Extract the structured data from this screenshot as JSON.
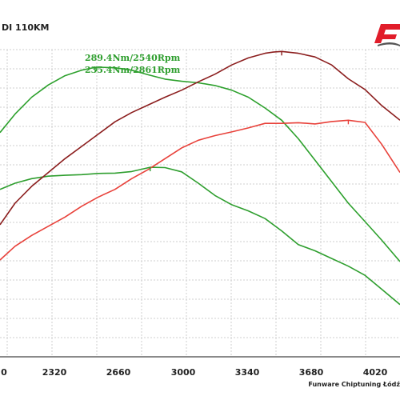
{
  "header": {
    "title_fragment": "DI 110KM"
  },
  "logo": {
    "name": "funware-logo-icon",
    "text": "F"
  },
  "credit": "Funware Chiptuning Łódź",
  "colors": {
    "stock_power": "#e8413a",
    "tuned_power": "#8b1d1d",
    "stock_torque": "#2e9e2e",
    "tuned_torque": "#2ca02c",
    "grid": "#cfcfcf"
  },
  "chart_data": {
    "type": "line",
    "title": "",
    "xlabel": "",
    "ylabel": "",
    "xlim": [
      1960,
      4360
    ],
    "ylim": [
      0,
      100
    ],
    "x_ticks": [
      "0",
      "2320",
      "2660",
      "3000",
      "3340",
      "3680",
      "4020"
    ],
    "grid": true,
    "annotations": [
      {
        "text": "289.4Nm/2540Rpm",
        "x": 2540
      },
      {
        "text": "235.4Nm/2861Rpm",
        "x": 2861
      }
    ],
    "series": [
      {
        "key": "tuned_torque",
        "x": [
          1960,
          2050,
          2150,
          2250,
          2350,
          2450,
          2540,
          2650,
          2750,
          2850,
          2950,
          3050,
          3150,
          3250,
          3350,
          3450,
          3550,
          3650,
          3750,
          3850,
          3950,
          4050,
          4150,
          4250,
          4360
        ],
        "y": [
          73,
          79,
          84.5,
          88.5,
          91.5,
          93.3,
          94.3,
          94.1,
          93.3,
          91.8,
          90.4,
          89.7,
          89.2,
          88.3,
          86.8,
          84.5,
          81,
          77,
          71,
          64,
          57,
          50,
          44,
          38,
          31
        ]
      },
      {
        "key": "stock_torque",
        "x": [
          1960,
          2050,
          2150,
          2250,
          2350,
          2450,
          2550,
          2650,
          2750,
          2861,
          2950,
          3050,
          3150,
          3250,
          3350,
          3450,
          3550,
          3650,
          3750,
          3850,
          3950,
          4050,
          4150,
          4250,
          4360
        ],
        "y": [
          54.5,
          56.5,
          58,
          58.8,
          59.1,
          59.3,
          59.7,
          59.8,
          60.3,
          61.7,
          61.6,
          60.2,
          56.5,
          52.5,
          49.5,
          47.5,
          45,
          41,
          36.5,
          34.5,
          32,
          29.5,
          26.5,
          22,
          17
        ]
      },
      {
        "key": "tuned_power",
        "x": [
          1960,
          2050,
          2150,
          2250,
          2350,
          2450,
          2550,
          2650,
          2750,
          2850,
          2950,
          3050,
          3150,
          3250,
          3350,
          3450,
          3550,
          3600,
          3650,
          3750,
          3850,
          3950,
          4050,
          4150,
          4250,
          4360
        ],
        "y": [
          43,
          50,
          55.5,
          60,
          64.5,
          68.5,
          72.5,
          76.5,
          79.5,
          82,
          84.5,
          86.8,
          89.5,
          92,
          95,
          97.3,
          98.8,
          99.2,
          99.4,
          98.8,
          97.6,
          95,
          90.5,
          87,
          81.8,
          77
        ]
      },
      {
        "key": "stock_power",
        "x": [
          1960,
          2050,
          2150,
          2250,
          2350,
          2450,
          2550,
          2650,
          2750,
          2850,
          2950,
          3050,
          3150,
          3250,
          3350,
          3450,
          3550,
          3650,
          3750,
          3850,
          3950,
          4050,
          4150,
          4250,
          4360
        ],
        "y": [
          31.5,
          36,
          39.5,
          42.5,
          45.5,
          49,
          52,
          54.5,
          58,
          61,
          64.5,
          68,
          70.5,
          72,
          73.2,
          74.5,
          76,
          76,
          76.2,
          75.8,
          76.6,
          77,
          76.3,
          69.2,
          60
        ]
      }
    ]
  }
}
